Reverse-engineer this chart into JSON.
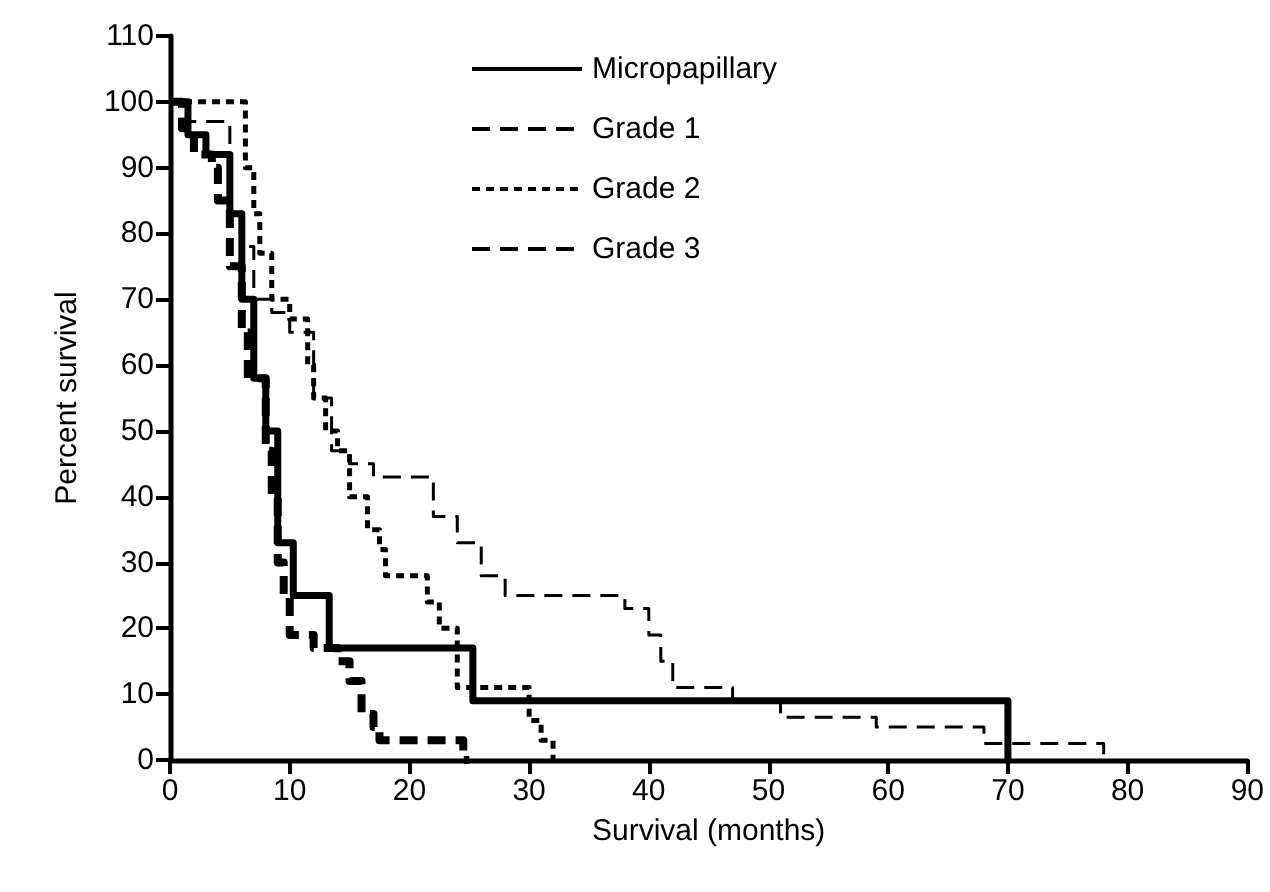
{
  "chart_data": {
    "type": "step",
    "xlabel": "Survival (months)",
    "ylabel": "Percent survival",
    "xlim": [
      0,
      90
    ],
    "xticks": [
      0,
      10,
      20,
      30,
      40,
      50,
      60,
      70,
      80,
      90
    ],
    "ylim": [
      0,
      110
    ],
    "yticks": [
      0,
      10,
      20,
      30,
      40,
      50,
      60,
      70,
      80,
      90,
      100,
      110
    ],
    "grid": false,
    "legend": "top",
    "marker": "none",
    "series": [
      {
        "name": "Micropapillary",
        "color": "#000000",
        "line_style": "solid",
        "x": [
          0,
          1.5,
          3,
          5,
          6,
          7,
          8,
          9,
          10.3,
          13.3,
          25.3,
          70,
          70
        ],
        "values": [
          100,
          95,
          92,
          83,
          70,
          58,
          50,
          33,
          25,
          17,
          9,
          0,
          0
        ]
      },
      {
        "name": "Grade 1",
        "color": "#000000",
        "line_style": "dashed",
        "x": [
          0,
          1,
          5,
          6,
          7,
          8.5,
          10,
          12,
          13.5,
          15,
          17,
          22,
          24,
          26,
          28,
          38,
          40,
          41,
          42,
          47,
          51,
          59,
          68,
          78,
          78
        ],
        "values": [
          100,
          97,
          83,
          78,
          70,
          68,
          65,
          55,
          47,
          45,
          43,
          37,
          33,
          28,
          25,
          23,
          19,
          15,
          11,
          9,
          6.5,
          5,
          2.5,
          0,
          0
        ]
      },
      {
        "name": "Grade 2",
        "color": "#000000",
        "line_style": "dotted",
        "x": [
          0,
          6.3,
          7,
          7.5,
          8.5,
          10,
          11.5,
          12,
          13,
          14,
          15,
          16.5,
          17.5,
          18,
          21.5,
          22.5,
          24,
          30,
          31,
          32
        ],
        "values": [
          100,
          90,
          83,
          77,
          70,
          67,
          60,
          55,
          50,
          47,
          40,
          35,
          32,
          28,
          24,
          20,
          11,
          6,
          3,
          0
        ]
      },
      {
        "name": "Grade 3",
        "color": "#000000",
        "line_style": "dashed",
        "x": [
          0,
          1,
          2,
          3.5,
          4,
          5,
          6,
          6.5,
          8,
          8.5,
          9,
          9.5,
          10,
          12,
          14,
          15,
          16,
          17,
          17.5,
          24.5,
          25
        ],
        "values": [
          100,
          96,
          92,
          90,
          85,
          75,
          65,
          58,
          47,
          40,
          30,
          25,
          19,
          17,
          15,
          12,
          7,
          5,
          3,
          0,
          0
        ]
      }
    ]
  }
}
